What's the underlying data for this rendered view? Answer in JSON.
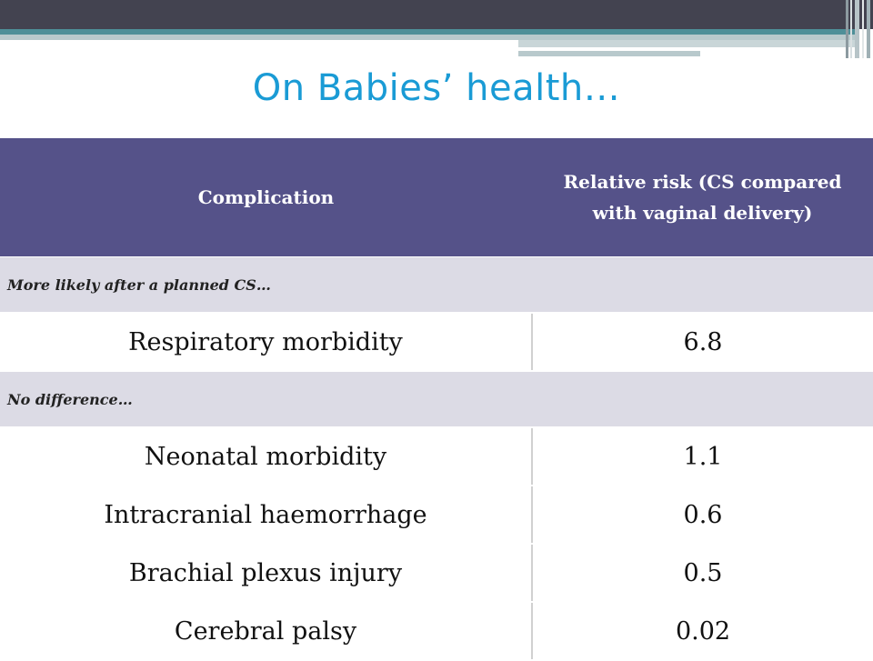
{
  "title": "On Babies’ health…",
  "table": {
    "headers": [
      "Complication",
      "Relative risk (CS compared with vaginal delivery)"
    ],
    "sections": [
      {
        "label": "More likely after a planned CS…",
        "rows": [
          {
            "complication": "Respiratory morbidity",
            "risk": "6.8"
          }
        ]
      },
      {
        "label": "No difference…",
        "rows": [
          {
            "complication": "Neonatal morbidity",
            "risk": "1.1"
          },
          {
            "complication": "Intracranial haemorrhage",
            "risk": "0.6"
          },
          {
            "complication": "Brachial plexus injury",
            "risk": "0.5"
          },
          {
            "complication": "Cerebral palsy",
            "risk": "0.02"
          }
        ]
      }
    ]
  },
  "colors": {
    "header_bg": "#555289",
    "section_bg": "#dcdbe5",
    "title": "#1a9bd5",
    "top_band": "#434350",
    "accent_line": "#4e8f98"
  }
}
